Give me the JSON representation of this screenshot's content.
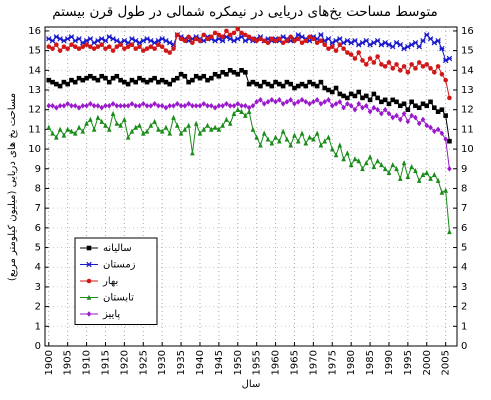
{
  "chart_data": {
    "type": "line",
    "title": "متوسط مساحت یخ‌های دریایی در نیمکره شمالی در طول قرن بیستم",
    "x_label": "سال",
    "y_label": "مساحت یخ های دریایی (میلیون کیلومتر مربع)",
    "x": [
      1900,
      1901,
      1902,
      1903,
      1904,
      1905,
      1906,
      1907,
      1908,
      1909,
      1910,
      1911,
      1912,
      1913,
      1914,
      1915,
      1916,
      1917,
      1918,
      1919,
      1920,
      1921,
      1922,
      1923,
      1924,
      1925,
      1926,
      1927,
      1928,
      1929,
      1930,
      1931,
      1932,
      1933,
      1934,
      1935,
      1936,
      1937,
      1938,
      1939,
      1940,
      1941,
      1942,
      1943,
      1944,
      1945,
      1946,
      1947,
      1948,
      1949,
      1950,
      1951,
      1952,
      1953,
      1954,
      1955,
      1956,
      1957,
      1958,
      1959,
      1960,
      1961,
      1962,
      1963,
      1964,
      1965,
      1966,
      1967,
      1968,
      1969,
      1970,
      1971,
      1972,
      1973,
      1974,
      1975,
      1976,
      1977,
      1978,
      1979,
      1980,
      1981,
      1982,
      1983,
      1984,
      1985,
      1986,
      1987,
      1988,
      1989,
      1990,
      1991,
      1992,
      1993,
      1994,
      1995,
      1996,
      1997,
      1998,
      1999,
      2000,
      2001,
      2002,
      2003,
      2004,
      2005,
      2006
    ],
    "series": [
      {
        "name": "سالیانه",
        "color": "#000000",
        "marker": "square",
        "values": [
          13.5,
          13.4,
          13.3,
          13.2,
          13.4,
          13.3,
          13.5,
          13.4,
          13.6,
          13.5,
          13.6,
          13.7,
          13.6,
          13.5,
          13.7,
          13.6,
          13.4,
          13.6,
          13.7,
          13.5,
          13.4,
          13.3,
          13.5,
          13.4,
          13.6,
          13.5,
          13.4,
          13.5,
          13.6,
          13.4,
          13.5,
          13.4,
          13.3,
          13.5,
          13.6,
          13.8,
          13.7,
          13.4,
          13.5,
          13.7,
          13.6,
          13.7,
          13.5,
          13.6,
          13.8,
          13.7,
          13.9,
          13.8,
          14.0,
          13.9,
          13.8,
          14.0,
          13.9,
          13.3,
          13.4,
          13.3,
          13.2,
          13.4,
          13.3,
          13.2,
          13.4,
          13.3,
          13.2,
          13.4,
          13.3,
          13.1,
          13.2,
          13.3,
          13.2,
          13.4,
          13.3,
          13.2,
          13.4,
          13.1,
          13.0,
          12.9,
          13.1,
          12.8,
          12.7,
          12.6,
          12.8,
          12.7,
          12.9,
          12.6,
          12.7,
          12.5,
          12.8,
          12.6,
          12.4,
          12.5,
          12.3,
          12.5,
          12.4,
          12.2,
          12.3,
          12.0,
          12.4,
          12.2,
          12.1,
          12.3,
          12.2,
          12.4,
          12.1,
          11.9,
          12.0,
          11.7,
          10.4
        ]
      },
      {
        "name": "زمستان",
        "color": "#1a1acc",
        "marker": "star",
        "values": [
          15.6,
          15.5,
          15.7,
          15.6,
          15.5,
          15.6,
          15.7,
          15.5,
          15.6,
          15.4,
          15.5,
          15.6,
          15.4,
          15.5,
          15.6,
          15.5,
          15.7,
          15.6,
          15.5,
          15.4,
          15.5,
          15.4,
          15.6,
          15.5,
          15.4,
          15.5,
          15.6,
          15.5,
          15.4,
          15.5,
          15.6,
          15.5,
          15.4,
          15.3,
          15.8,
          15.7,
          15.6,
          15.5,
          15.6,
          15.7,
          15.6,
          15.5,
          15.7,
          15.6,
          15.5,
          15.6,
          15.5,
          15.7,
          15.6,
          15.5,
          15.6,
          15.7,
          15.5,
          15.6,
          15.5,
          15.6,
          15.7,
          15.5,
          15.6,
          15.5,
          15.6,
          15.5,
          15.7,
          15.6,
          15.5,
          15.6,
          15.8,
          15.7,
          15.6,
          15.5,
          15.7,
          15.6,
          15.8,
          15.5,
          15.6,
          15.4,
          15.5,
          15.6,
          15.4,
          15.5,
          15.4,
          15.5,
          15.3,
          15.4,
          15.5,
          15.3,
          15.4,
          15.5,
          15.3,
          15.4,
          15.3,
          15.2,
          15.4,
          15.3,
          15.1,
          15.2,
          15.3,
          15.4,
          15.2,
          15.5,
          15.8,
          15.6,
          15.4,
          15.5,
          15.1,
          14.5,
          14.6
        ]
      },
      {
        "name": "بهار",
        "color": "#d01818",
        "marker": "circle",
        "values": [
          15.2,
          15.1,
          15.3,
          15.0,
          15.2,
          15.1,
          15.3,
          15.2,
          15.1,
          15.2,
          15.3,
          15.2,
          15.1,
          15.2,
          15.3,
          15.1,
          15.2,
          15.0,
          15.2,
          15.3,
          15.1,
          15.2,
          15.3,
          15.1,
          15.2,
          15.0,
          15.1,
          15.2,
          15.1,
          15.3,
          15.2,
          15.0,
          14.9,
          15.1,
          15.8,
          15.6,
          15.5,
          15.7,
          15.4,
          15.6,
          15.5,
          15.8,
          15.6,
          15.7,
          15.9,
          15.8,
          15.7,
          16.0,
          15.8,
          15.9,
          16.1,
          15.9,
          15.8,
          15.7,
          15.6,
          15.5,
          15.6,
          15.5,
          15.4,
          15.6,
          15.5,
          15.6,
          15.4,
          15.5,
          15.7,
          15.5,
          15.6,
          15.4,
          15.5,
          15.7,
          15.6,
          15.4,
          15.5,
          15.3,
          15.1,
          15.2,
          15.0,
          15.3,
          15.1,
          14.9,
          14.8,
          14.6,
          14.9,
          14.5,
          14.3,
          14.6,
          14.4,
          14.7,
          14.3,
          14.2,
          14.4,
          14.1,
          14.3,
          14.0,
          14.2,
          13.9,
          14.3,
          14.1,
          14.4,
          14.2,
          14.3,
          14.1,
          13.9,
          14.2,
          13.8,
          13.5,
          12.6
        ]
      },
      {
        "name": "تابستان",
        "color": "#1a8c1a",
        "marker": "triangle",
        "values": [
          11.1,
          10.8,
          10.6,
          11.0,
          10.7,
          11.0,
          10.9,
          10.8,
          11.1,
          10.9,
          11.3,
          11.5,
          11.0,
          11.6,
          11.4,
          11.2,
          11.0,
          11.8,
          11.3,
          11.2,
          11.5,
          10.6,
          10.9,
          11.1,
          11.2,
          10.8,
          10.9,
          11.2,
          11.4,
          11.0,
          10.9,
          11.1,
          10.8,
          11.6,
          11.2,
          10.8,
          11.0,
          11.2,
          9.8,
          11.3,
          10.8,
          11.0,
          11.2,
          11.0,
          11.1,
          11.0,
          11.2,
          11.5,
          11.3,
          11.8,
          12.0,
          11.9,
          11.7,
          11.9,
          11.0,
          10.6,
          10.2,
          10.8,
          10.5,
          10.3,
          10.6,
          10.4,
          10.9,
          10.5,
          10.2,
          10.7,
          10.4,
          10.8,
          10.3,
          10.6,
          10.5,
          10.8,
          10.2,
          10.4,
          10.6,
          10.0,
          9.7,
          10.2,
          9.5,
          9.8,
          9.2,
          9.5,
          9.4,
          9.0,
          9.3,
          9.6,
          9.1,
          9.4,
          9.2,
          9.0,
          8.8,
          9.2,
          9.0,
          8.5,
          9.3,
          8.6,
          9.1,
          8.9,
          8.4,
          8.7,
          8.8,
          8.5,
          8.7,
          8.4,
          7.8,
          7.9,
          5.8
        ]
      },
      {
        "name": "پاییز",
        "color": "#9a1acc",
        "marker": "diamond",
        "values": [
          12.2,
          12.2,
          12.1,
          12.2,
          12.2,
          12.3,
          12.2,
          12.2,
          12.1,
          12.2,
          12.2,
          12.3,
          12.2,
          12.2,
          12.1,
          12.2,
          12.2,
          12.3,
          12.2,
          12.2,
          12.2,
          12.2,
          12.3,
          12.2,
          12.2,
          12.3,
          12.2,
          12.2,
          12.3,
          12.2,
          12.2,
          12.1,
          12.2,
          12.2,
          12.3,
          12.2,
          12.2,
          12.3,
          12.2,
          12.2,
          12.2,
          12.3,
          12.2,
          12.2,
          12.1,
          12.2,
          12.2,
          12.3,
          12.2,
          12.2,
          12.3,
          12.2,
          12.2,
          12.1,
          12.2,
          12.4,
          12.5,
          12.3,
          12.4,
          12.5,
          12.4,
          12.5,
          12.3,
          12.4,
          12.5,
          12.3,
          12.4,
          12.5,
          12.4,
          12.3,
          12.4,
          12.5,
          12.3,
          12.4,
          12.5,
          12.2,
          12.3,
          12.4,
          12.1,
          12.3,
          12.2,
          12.0,
          12.3,
          12.1,
          12.2,
          11.9,
          12.1,
          12.0,
          11.8,
          12.0,
          11.8,
          11.6,
          11.7,
          11.5,
          11.8,
          11.4,
          11.7,
          11.6,
          11.3,
          11.5,
          11.2,
          11.1,
          10.9,
          11.0,
          10.8,
          10.5,
          9.0
        ]
      }
    ],
    "xlim": [
      1899,
      2008
    ],
    "xticks": [
      1900,
      1905,
      1910,
      1915,
      1920,
      1925,
      1930,
      1935,
      1940,
      1945,
      1950,
      1955,
      1960,
      1965,
      1970,
      1975,
      1980,
      1985,
      1990,
      1995,
      2000,
      2005
    ],
    "ylim": [
      0,
      16.2
    ],
    "yticks": [
      0,
      1,
      2,
      3,
      4,
      5,
      6,
      7,
      8,
      9,
      10,
      11,
      12,
      13,
      14,
      15,
      16
    ],
    "grid": true,
    "legend": "lower left"
  }
}
